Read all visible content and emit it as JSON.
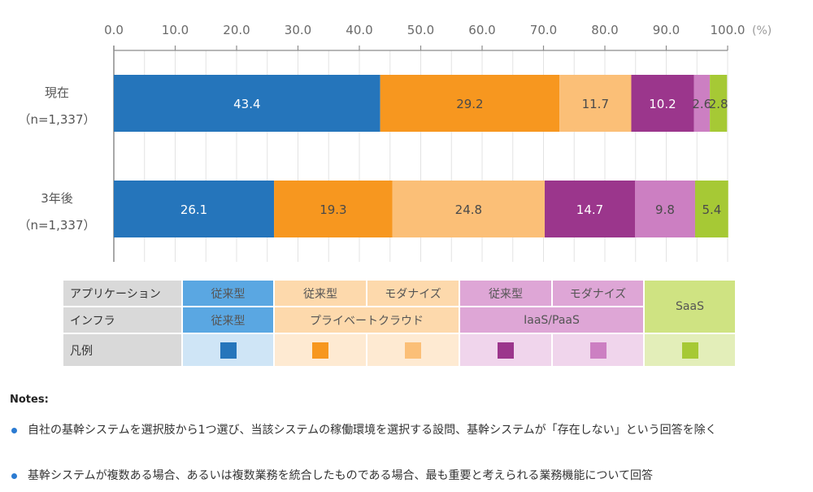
{
  "chart_data": {
    "type": "bar",
    "orientation": "horizontal-stacked",
    "xlim": [
      0,
      100
    ],
    "x_ticks": [
      "0.0",
      "10.0",
      "20.0",
      "30.0",
      "40.0",
      "50.0",
      "60.0",
      "70.0",
      "80.0",
      "90.0",
      "100.0"
    ],
    "x_unit": "(%)",
    "grid": true,
    "categories": [
      {
        "label": "現在",
        "n": "（n=1,337）"
      },
      {
        "label": "3年後",
        "n": "（n=1,337）"
      }
    ],
    "series": [
      {
        "name": "従来型アプリケーション / 従来型インフラ",
        "color": "#2575bb",
        "label_color": "#ffffff",
        "values": [
          43.4,
          26.1
        ],
        "labels": [
          "43.4",
          "26.1"
        ]
      },
      {
        "name": "従来型 / プライベートクラウド",
        "color": "#f7971f",
        "label_color": "#4a4a4a",
        "values": [
          29.2,
          19.3
        ],
        "labels": [
          "29.2",
          "19.3"
        ]
      },
      {
        "name": "モダナイズ / プライベートクラウド",
        "color": "#fbbf77",
        "label_color": "#4a4a4a",
        "values": [
          11.7,
          24.8
        ],
        "labels": [
          "11.7",
          "24.8"
        ]
      },
      {
        "name": "従来型 / IaaS/PaaS",
        "color": "#9b368c",
        "label_color": "#ffffff",
        "values": [
          10.2,
          14.7
        ],
        "labels": [
          "10.2",
          "14.7"
        ]
      },
      {
        "name": "モダナイズ / IaaS/PaaS",
        "color": "#cc7fc2",
        "label_color": "#4a4a4a",
        "values": [
          2.6,
          9.8
        ],
        "labels": [
          "2.6",
          "9.8"
        ]
      },
      {
        "name": "SaaS",
        "color": "#a6c935",
        "label_color": "#4a4a4a",
        "values": [
          2.8,
          5.4
        ],
        "labels": [
          "2.8",
          "5.4"
        ]
      }
    ]
  },
  "legend_table": {
    "row_headers": [
      "アプリケーション",
      "インフラ",
      "凡例"
    ],
    "app_row": [
      "従来型",
      "従来型",
      "モダナイズ",
      "従来型",
      "モダナイズ"
    ],
    "infra_row": [
      "従来型",
      "プライベートクラウド",
      "IaaS/PaaS"
    ],
    "saas_label": "SaaS",
    "swatch_colors": [
      "#2575bb",
      "#f7971f",
      "#fbbf77",
      "#9b368c",
      "#cc7fc2",
      "#a6c935"
    ]
  },
  "notes": {
    "title": "Notes:",
    "items": [
      "自社の基幹システムを選択肢から1つ選び、当該システムの稼働環境を選択する設問、基幹システムが「存在しない」という回答を除く",
      "基幹システムが複数ある場合、あるいは複数業務を統合したものである場合、最も重要と考えられる業務機能について回答"
    ]
  }
}
